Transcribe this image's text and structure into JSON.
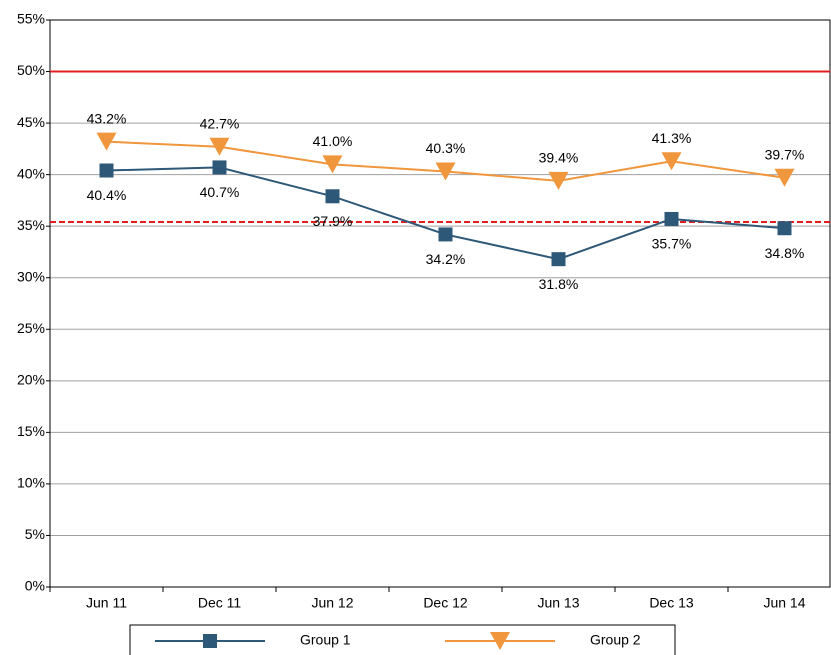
{
  "chart_data": {
    "type": "line",
    "categories": [
      "Jun 11",
      "Dec 11",
      "Jun 12",
      "Dec 12",
      "Jun 13",
      "Dec 13",
      "Jun 14"
    ],
    "series": [
      {
        "name": "Group 1",
        "color": "#2e5878",
        "marker": "square",
        "values": [
          40.4,
          40.7,
          37.9,
          34.2,
          31.8,
          35.7,
          34.8
        ],
        "value_labels": [
          "40.4%",
          "40.7%",
          "37.9%",
          "34.2%",
          "31.8%",
          "35.7%",
          "34.8%"
        ]
      },
      {
        "name": "Group 2",
        "color": "#f0963c",
        "marker": "triangle-down",
        "values": [
          43.2,
          42.7,
          41.0,
          40.3,
          39.4,
          41.3,
          39.7
        ],
        "value_labels": [
          "43.2%",
          "42.7%",
          "41.0%",
          "40.3%",
          "39.4%",
          "41.3%",
          "39.7%"
        ]
      }
    ],
    "reference_lines": [
      {
        "value": 50,
        "color": "#e02020",
        "style": "solid"
      },
      {
        "value": 35.4,
        "color": "#e02020",
        "style": "dashed"
      }
    ],
    "ylim": [
      0,
      55
    ],
    "yticks": [
      {
        "value": 0,
        "label": "0%"
      },
      {
        "value": 5,
        "label": "5%"
      },
      {
        "value": 10,
        "label": "10%"
      },
      {
        "value": 15,
        "label": "15%"
      },
      {
        "value": 20,
        "label": "20%"
      },
      {
        "value": 25,
        "label": "25%"
      },
      {
        "value": 30,
        "label": "30%"
      },
      {
        "value": 35,
        "label": "35%"
      },
      {
        "value": 40,
        "label": "40%"
      },
      {
        "value": 45,
        "label": "45%"
      },
      {
        "value": 50,
        "label": "50%"
      },
      {
        "value": 55,
        "label": "55%"
      }
    ],
    "grid": true
  }
}
